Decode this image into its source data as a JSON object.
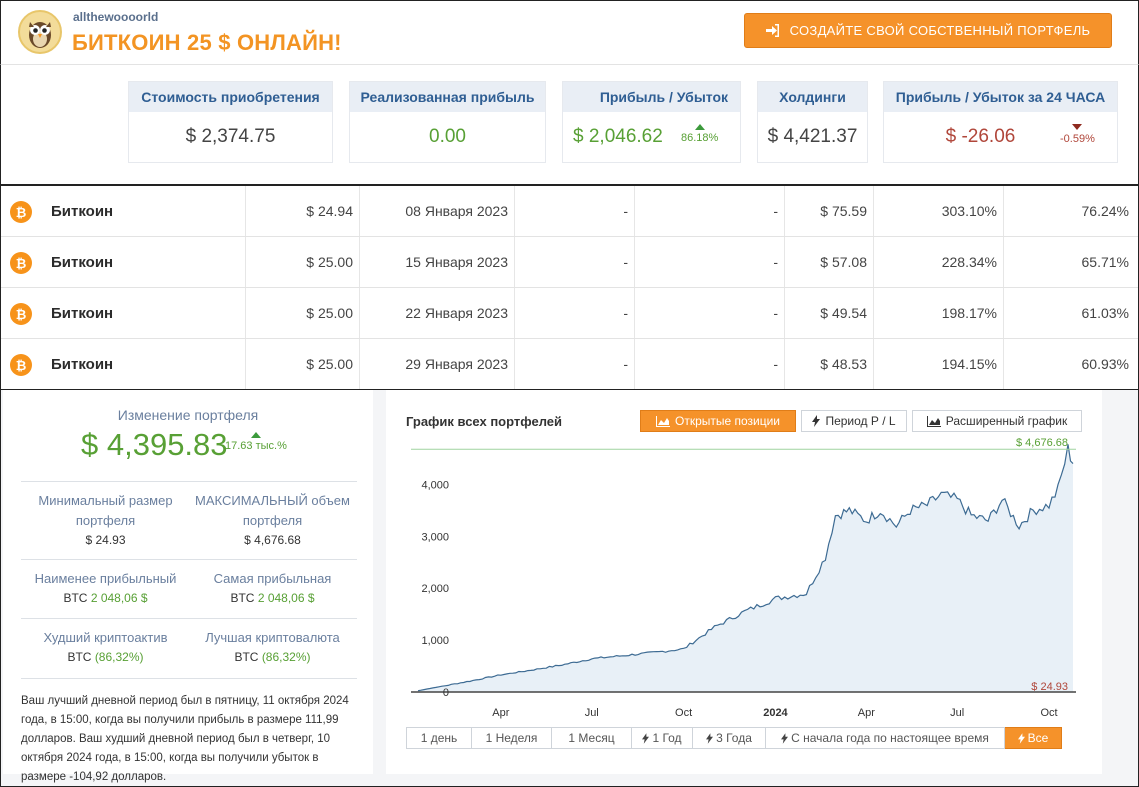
{
  "header": {
    "username": "allthewoooorld",
    "portfolio_title": "БИТКОИН 25 $ ОНЛАЙН!",
    "create_button": "СОЗДАЙТЕ СВОЙ СОБСТВЕННЫЙ ПОРТФЕЛЬ"
  },
  "stats": {
    "cost": {
      "label": "Стоимость приобретения",
      "value": "$ 2,374.75"
    },
    "realized": {
      "label": "Реализованная прибыль",
      "value": "0.00"
    },
    "pnl": {
      "label": "Прибыль / Убыток",
      "value": "$ 2,046.62",
      "pct": "86.18%"
    },
    "holdings": {
      "label": "Холдинги",
      "value": "$ 4,421.37"
    },
    "pnl24": {
      "label": "Прибыль / Убыток за 24 ЧАСА",
      "value": "$ -26.06",
      "pct": "-0.59%"
    }
  },
  "table": {
    "rows": [
      {
        "coin": "Биткоин",
        "price": "$ 24.94",
        "date": "08 Января 2023",
        "c1": "-",
        "c2": "-",
        "value": "$ 75.59",
        "pct1": "303.10%",
        "pct2": "76.24%"
      },
      {
        "coin": "Биткоин",
        "price": "$ 25.00",
        "date": "15 Января 2023",
        "c1": "-",
        "c2": "-",
        "value": "$ 57.08",
        "pct1": "228.34%",
        "pct2": "65.71%"
      },
      {
        "coin": "Биткоин",
        "price": "$ 25.00",
        "date": "22 Января 2023",
        "c1": "-",
        "c2": "-",
        "value": "$ 49.54",
        "pct1": "198.17%",
        "pct2": "61.03%"
      },
      {
        "coin": "Биткоин",
        "price": "$ 25.00",
        "date": "29 Января 2023",
        "c1": "-",
        "c2": "-",
        "value": "$ 48.53",
        "pct1": "194.15%",
        "pct2": "60.93%"
      }
    ]
  },
  "summary": {
    "change_title": "Изменение портфеля",
    "change_value": "$ 4,395.83",
    "change_pct": "17.63 тыс.%",
    "min_label": "Минимальный размер портфеля",
    "min_value": "$ 24.93",
    "max_label": "МАКСИМАЛЬНЫЙ объем портфеля",
    "max_value": "$ 4,676.68",
    "least_label": "Наименее прибыльный",
    "least_coin": "BTC",
    "least_value": "2 048,06 $",
    "most_label": "Самая прибыльная",
    "most_coin": "BTC",
    "most_value": "2 048,06 $",
    "worst_label": "Худший криптоактив",
    "worst_coin": "BTC",
    "worst_value": "(86,32%)",
    "best_label": "Лучшая криптовалюта",
    "best_coin": "BTC",
    "best_value": "(86,32%)",
    "note": "Ваш лучший дневной период был в пятницу, 11 октября 2024 года, в 15:00, когда вы получили прибыль в размере 111,99 долларов. Ваш худший дневной период был в четверг, 10 октября 2024 года, в 15:00, когда вы получили убыток в размере -104,92 долларов."
  },
  "chart_panel": {
    "title": "График всех портфелей",
    "tab_open": "Открытые позиции",
    "tab_period": "Период Р / L",
    "tab_extended": "Расширенный график",
    "ranges": [
      "1 день",
      "1 Неделя",
      "1 Месяц",
      "1 Год",
      "3 Года",
      "С начала года по настоящее время",
      "Все"
    ],
    "active_range": "Все"
  },
  "colors": {
    "accent": "#f5922a",
    "green": "#58a035",
    "red": "#b0463a",
    "header_blue": "#2f5e93",
    "line": "#3d6b93",
    "area": "#e8f0f7"
  },
  "chart_data": {
    "type": "area",
    "title": "График всех портфелей",
    "xlabel": "",
    "ylabel": "",
    "ylim": [
      0,
      4700
    ],
    "x_ticks": [
      "Apr",
      "Jul",
      "Oct",
      "2024",
      "Apr",
      "Jul",
      "Oct"
    ],
    "y_ticks": [
      "0",
      "1,000",
      "2,000",
      "3,000",
      "4,000"
    ],
    "max_label": "$ 4,676.68",
    "min_label": "$ 24.93",
    "grid": false,
    "series": [
      {
        "x": [
          "2023-01-08",
          "2023-02-01",
          "2023-03-01",
          "2023-04-01",
          "2023-05-01",
          "2023-06-01",
          "2023-07-01",
          "2023-08-01",
          "2023-09-01",
          "2023-10-01",
          "2023-11-01",
          "2023-12-01",
          "2024-01-01",
          "2024-02-01",
          "2024-02-20",
          "2024-03-01",
          "2024-03-15",
          "2024-04-01",
          "2024-04-15",
          "2024-05-01",
          "2024-05-15",
          "2024-06-01",
          "2024-06-15",
          "2024-07-01",
          "2024-07-15",
          "2024-08-01",
          "2024-08-15",
          "2024-09-01",
          "2024-09-15",
          "2024-10-01",
          "2024-10-10",
          "2024-10-20",
          "2024-10-25"
        ],
        "values": [
          25,
          110,
          210,
          330,
          420,
          520,
          640,
          700,
          760,
          830,
          1250,
          1550,
          1800,
          1900,
          2600,
          3400,
          3500,
          3300,
          3500,
          3200,
          3500,
          3600,
          3800,
          3700,
          3400,
          3300,
          3700,
          3200,
          3500,
          3600,
          3900,
          4676,
          4400
        ]
      }
    ]
  }
}
